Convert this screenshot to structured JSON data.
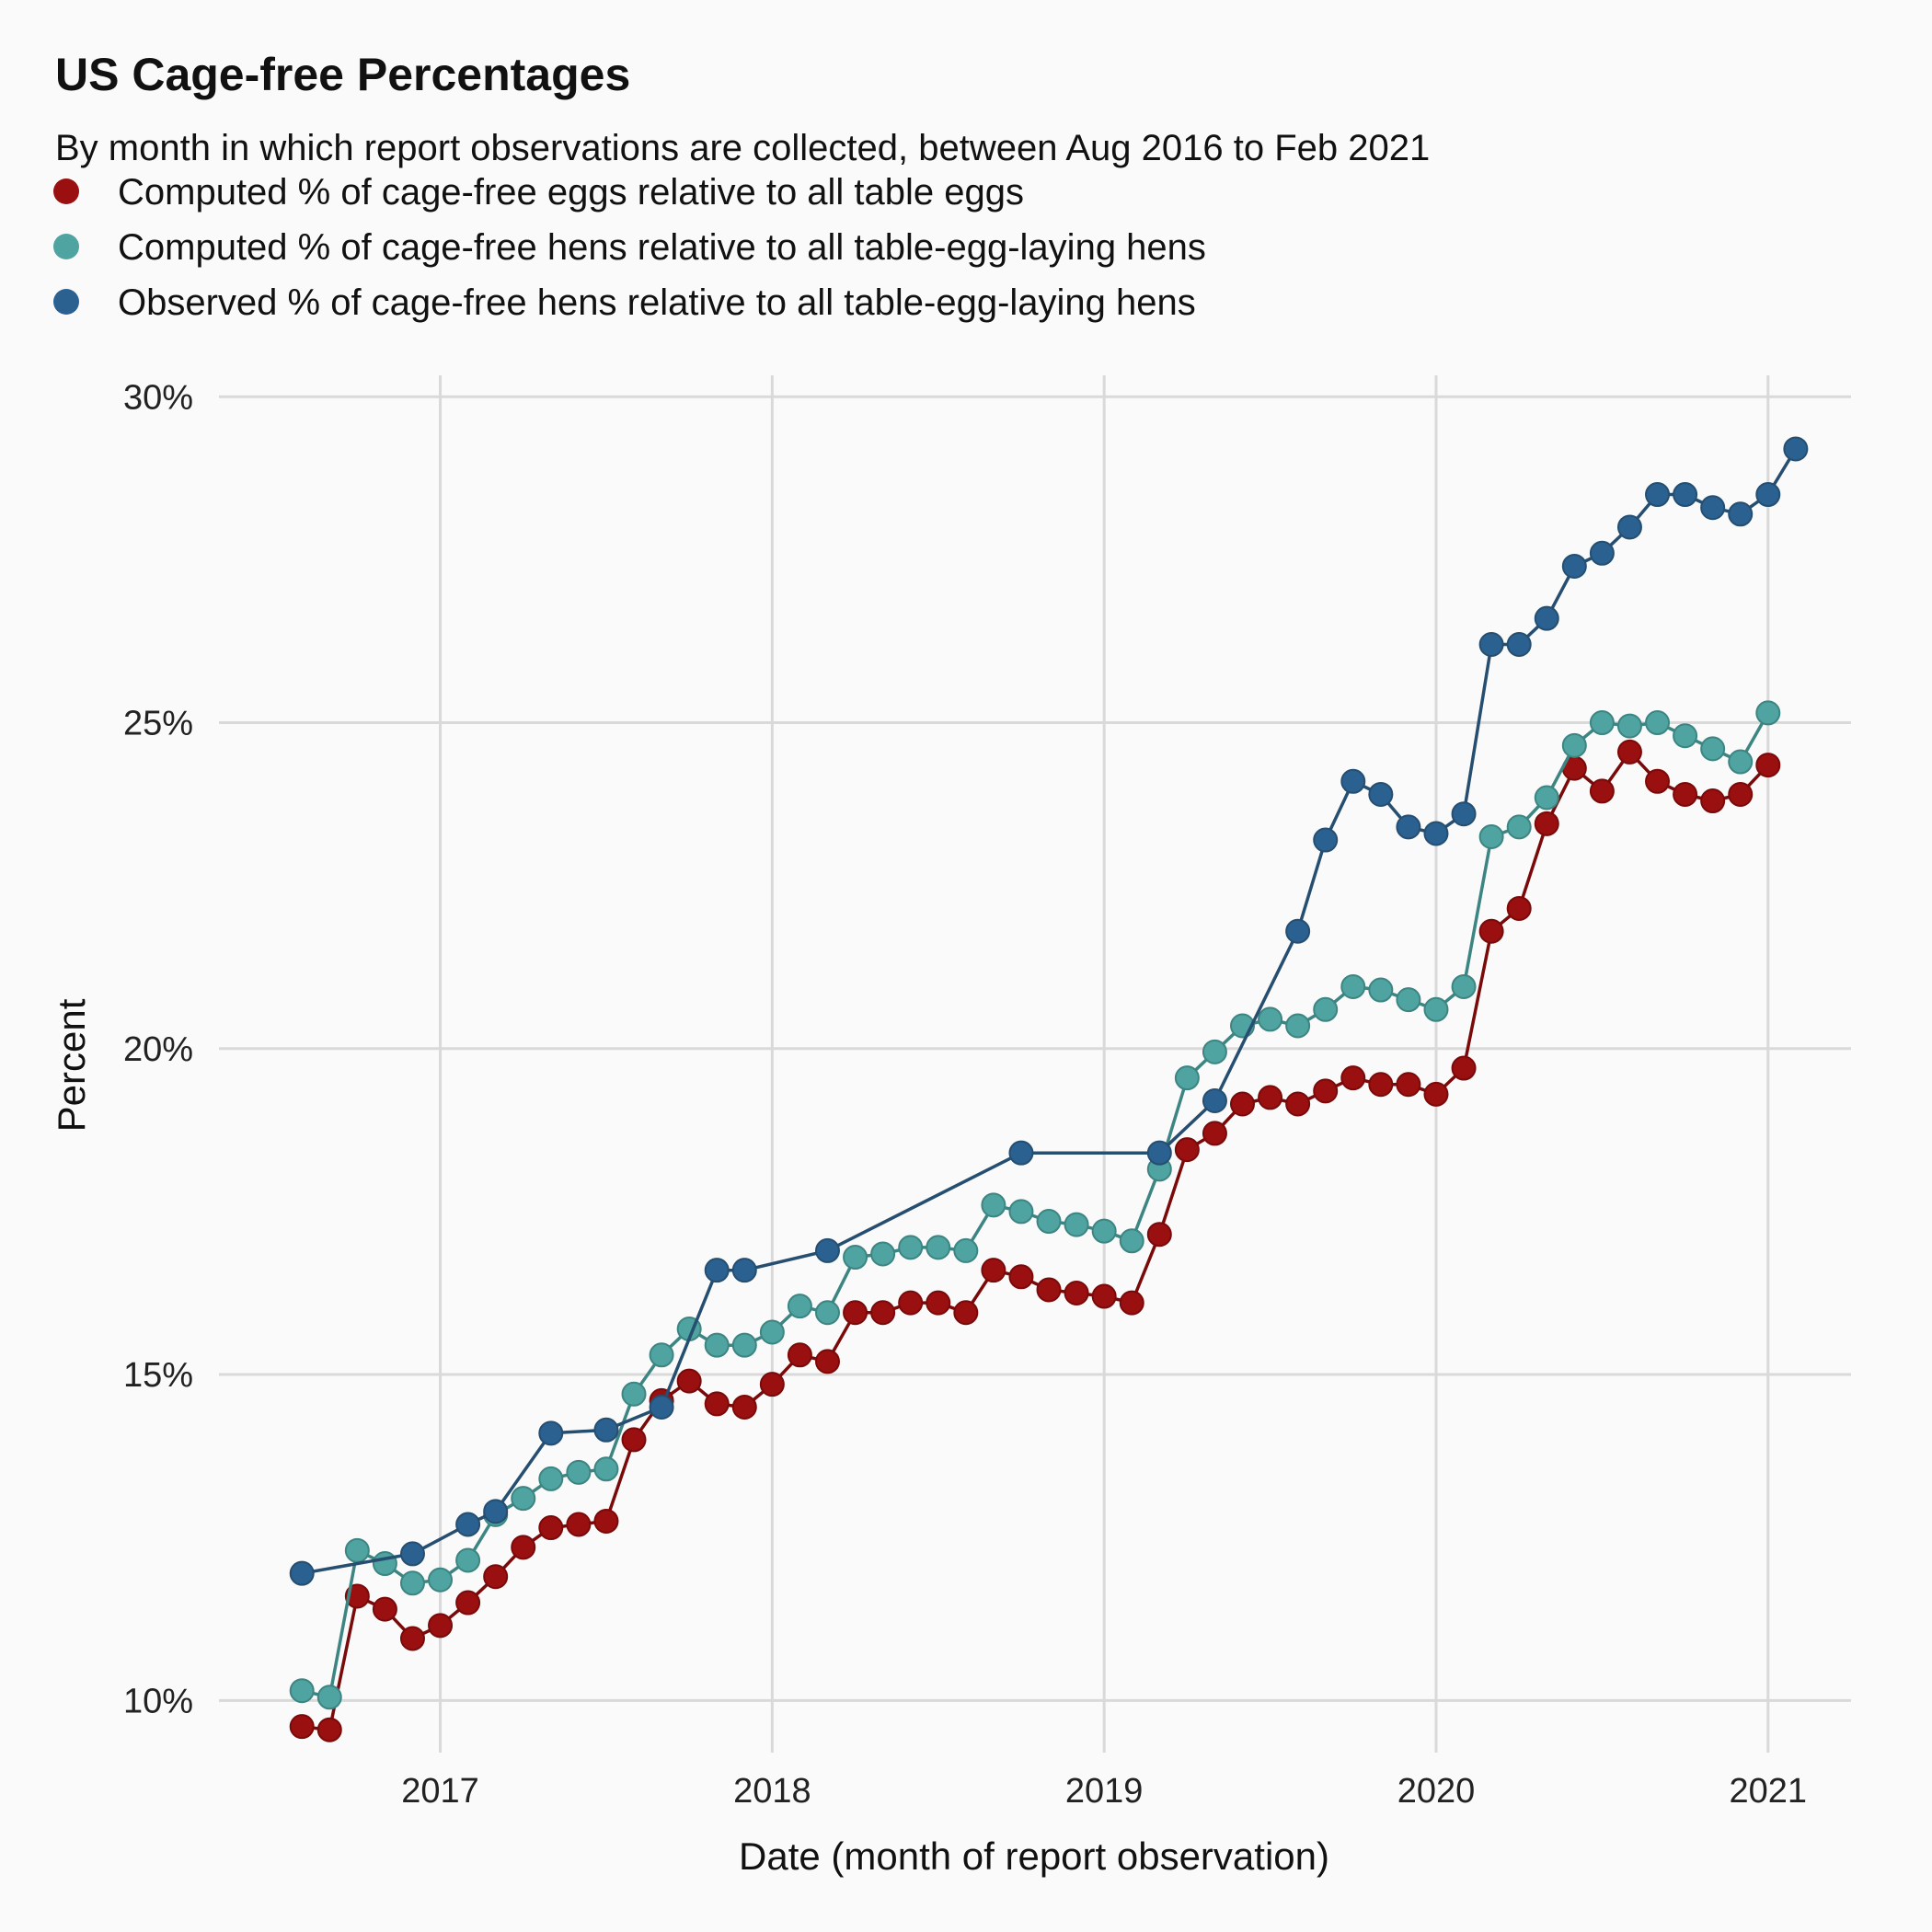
{
  "colors": {
    "background": "#fafafa",
    "grid": "#d9d9d9"
  },
  "chart_data": {
    "type": "line",
    "title": "US Cage-free Percentages",
    "subtitle": "By month in which report observations are collected, between Aug 2016 to Feb 2021",
    "xlabel": "Date (month of report observation)",
    "ylabel": "Percent",
    "x_ticks": [
      "2017",
      "2018",
      "2019",
      "2020",
      "2021"
    ],
    "y_ticks": [
      "10%",
      "15%",
      "20%",
      "25%",
      "30%"
    ],
    "y_tick_values": [
      10,
      15,
      20,
      25,
      30
    ],
    "xlim": [
      "2016-05-01",
      "2021-04-01"
    ],
    "ylim": [
      9.2,
      30.3
    ],
    "grid": true,
    "legend_position": "top-left",
    "series": [
      {
        "name": "Computed % of cage-free eggs relative to all table eggs",
        "color": "#9a1010",
        "line_color": "#7a0a0a",
        "x": [
          "2016-08",
          "2016-09",
          "2016-10",
          "2016-11",
          "2016-12",
          "2017-01",
          "2017-02",
          "2017-03",
          "2017-04",
          "2017-05",
          "2017-06",
          "2017-07",
          "2017-08",
          "2017-09",
          "2017-10",
          "2017-11",
          "2017-12",
          "2018-01",
          "2018-02",
          "2018-03",
          "2018-04",
          "2018-05",
          "2018-06",
          "2018-07",
          "2018-08",
          "2018-09",
          "2018-10",
          "2018-11",
          "2018-12",
          "2019-01",
          "2019-02",
          "2019-03",
          "2019-04",
          "2019-05",
          "2019-06",
          "2019-07",
          "2019-08",
          "2019-09",
          "2019-10",
          "2019-11",
          "2019-12",
          "2020-01",
          "2020-02",
          "2020-03",
          "2020-04",
          "2020-05",
          "2020-06",
          "2020-07",
          "2020-08",
          "2020-09",
          "2020-10",
          "2020-11",
          "2020-12",
          "2021-01"
        ],
        "values": [
          9.6,
          9.55,
          11.6,
          11.4,
          10.95,
          11.15,
          11.5,
          11.9,
          12.35,
          12.65,
          12.7,
          12.75,
          14.0,
          14.6,
          14.9,
          14.55,
          14.5,
          14.85,
          15.3,
          15.2,
          15.95,
          15.95,
          16.1,
          16.1,
          15.95,
          16.6,
          16.5,
          16.3,
          16.25,
          16.2,
          16.1,
          17.15,
          18.45,
          18.7,
          19.15,
          19.25,
          19.15,
          19.35,
          19.55,
          19.45,
          19.45,
          19.3,
          19.7,
          21.8,
          22.15,
          23.45,
          24.3,
          23.95,
          24.55,
          24.1,
          23.9,
          23.8,
          23.9,
          24.35
        ]
      },
      {
        "name": "Computed % of cage-free hens relative to all table-egg-laying hens",
        "color": "#4fa3a0",
        "line_color": "#3d8582",
        "x": [
          "2016-08",
          "2016-09",
          "2016-10",
          "2016-11",
          "2016-12",
          "2017-01",
          "2017-02",
          "2017-03",
          "2017-04",
          "2017-05",
          "2017-06",
          "2017-07",
          "2017-08",
          "2017-09",
          "2017-10",
          "2017-11",
          "2017-12",
          "2018-01",
          "2018-02",
          "2018-03",
          "2018-04",
          "2018-05",
          "2018-06",
          "2018-07",
          "2018-08",
          "2018-09",
          "2018-10",
          "2018-11",
          "2018-12",
          "2019-01",
          "2019-02",
          "2019-03",
          "2019-04",
          "2019-05",
          "2019-06",
          "2019-07",
          "2019-08",
          "2019-09",
          "2019-10",
          "2019-11",
          "2019-12",
          "2020-01",
          "2020-02",
          "2020-03",
          "2020-04",
          "2020-05",
          "2020-06",
          "2020-07",
          "2020-08",
          "2020-09",
          "2020-10",
          "2020-11",
          "2020-12",
          "2021-01"
        ],
        "values": [
          10.15,
          10.05,
          12.3,
          12.1,
          11.8,
          11.85,
          12.15,
          12.85,
          13.1,
          13.4,
          13.5,
          13.55,
          14.7,
          15.3,
          15.7,
          15.45,
          15.45,
          15.65,
          16.05,
          15.95,
          16.8,
          16.85,
          16.95,
          16.95,
          16.9,
          17.6,
          17.5,
          17.35,
          17.3,
          17.2,
          17.05,
          18.15,
          19.55,
          19.95,
          20.35,
          20.45,
          20.35,
          20.6,
          20.95,
          20.9,
          20.75,
          20.6,
          20.95,
          23.25,
          23.4,
          23.85,
          24.65,
          25.0,
          24.95,
          25.0,
          24.8,
          24.6,
          24.4,
          25.15
        ]
      },
      {
        "name": "Observed % of cage-free hens relative to all table-egg-laying hens",
        "color": "#2b6190",
        "line_color": "#254e70",
        "x": [
          "2016-08",
          "2016-12",
          "2017-02",
          "2017-03",
          "2017-05",
          "2017-07",
          "2017-09",
          "2017-11",
          "2017-12",
          "2018-03",
          "2018-10",
          "2019-03",
          "2019-05",
          "2019-08",
          "2019-09",
          "2019-10",
          "2019-11",
          "2019-12",
          "2020-01",
          "2020-02",
          "2020-03",
          "2020-04",
          "2020-05",
          "2020-06",
          "2020-07",
          "2020-08",
          "2020-09",
          "2020-10",
          "2020-11",
          "2020-12",
          "2021-01",
          "2021-02"
        ],
        "values": [
          11.95,
          12.25,
          12.7,
          12.9,
          14.1,
          14.15,
          14.5,
          16.6,
          16.6,
          16.9,
          18.4,
          18.4,
          19.2,
          21.8,
          23.2,
          24.1,
          23.9,
          23.4,
          23.3,
          23.6,
          26.2,
          26.2,
          26.6,
          27.4,
          27.6,
          28.0,
          28.5,
          28.5,
          28.3,
          28.2,
          28.5,
          29.2
        ]
      }
    ]
  }
}
